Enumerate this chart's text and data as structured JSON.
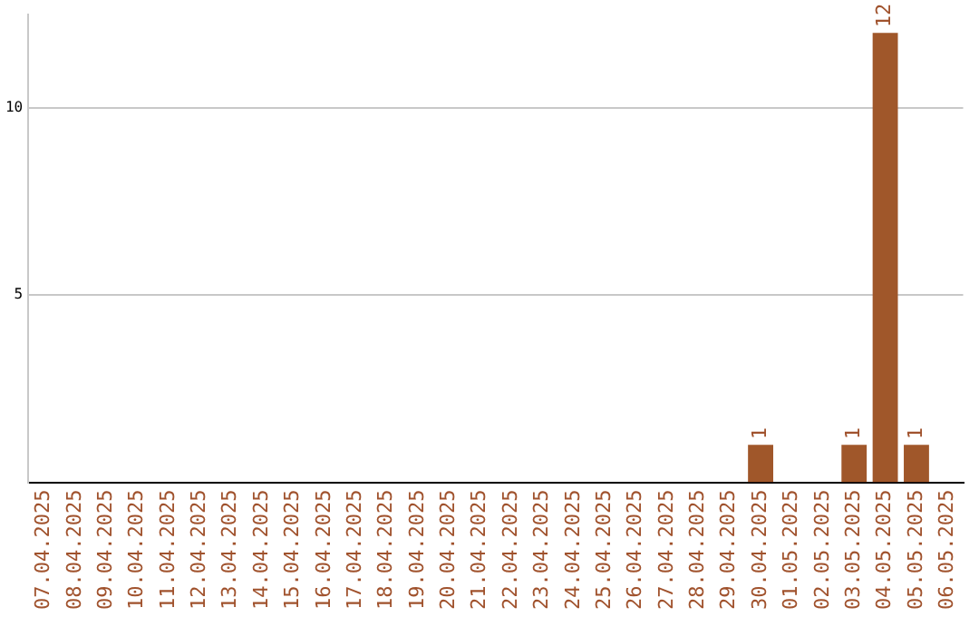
{
  "chart_data": {
    "type": "bar",
    "categories": [
      "07.04.2025",
      "08.04.2025",
      "09.04.2025",
      "10.04.2025",
      "11.04.2025",
      "12.04.2025",
      "13.04.2025",
      "14.04.2025",
      "15.04.2025",
      "16.04.2025",
      "17.04.2025",
      "18.04.2025",
      "19.04.2025",
      "20.04.2025",
      "21.04.2025",
      "22.04.2025",
      "23.04.2025",
      "24.04.2025",
      "25.04.2025",
      "26.04.2025",
      "27.04.2025",
      "28.04.2025",
      "29.04.2025",
      "30.04.2025",
      "01.05.2025",
      "02.05.2025",
      "03.05.2025",
      "04.05.2025",
      "05.05.2025",
      "06.05.2025"
    ],
    "values": [
      0,
      0,
      0,
      0,
      0,
      0,
      0,
      0,
      0,
      0,
      0,
      0,
      0,
      0,
      0,
      0,
      0,
      0,
      0,
      0,
      0,
      0,
      0,
      1,
      0,
      0,
      1,
      12,
      1,
      0
    ],
    "value_labels": [
      null,
      null,
      null,
      null,
      null,
      null,
      null,
      null,
      null,
      null,
      null,
      null,
      null,
      null,
      null,
      null,
      null,
      null,
      null,
      null,
      null,
      null,
      null,
      "1",
      null,
      null,
      "1",
      "12",
      "1",
      null
    ],
    "color": "#a0572a",
    "ylim": [
      0,
      12.5
    ],
    "yticks": [
      5,
      10
    ],
    "grid": "y",
    "legend": false
  }
}
